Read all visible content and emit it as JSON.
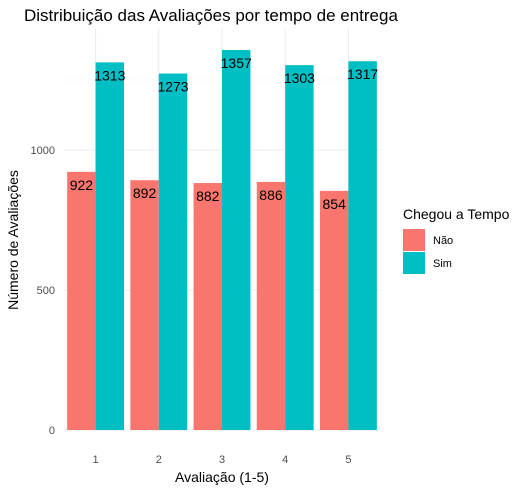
{
  "chart_data": {
    "type": "bar",
    "title": "Distribuição das Avaliações por tempo de entrega",
    "xlabel": "Avaliação (1-5)",
    "ylabel": "Número de Avaliações",
    "categories": [
      "1",
      "2",
      "3",
      "4",
      "5"
    ],
    "series": [
      {
        "name": "Não",
        "values": [
          922,
          892,
          882,
          886,
          854
        ],
        "color": "#F8766D"
      },
      {
        "name": "Sim",
        "values": [
          1313,
          1273,
          1357,
          1303,
          1317
        ],
        "color": "#00BFC4"
      }
    ],
    "ylim": [
      0,
      1400
    ],
    "yticks": [
      0,
      500,
      1000
    ],
    "legend": {
      "title": "Chegou a Tempo",
      "position": "right"
    },
    "grid": true
  }
}
